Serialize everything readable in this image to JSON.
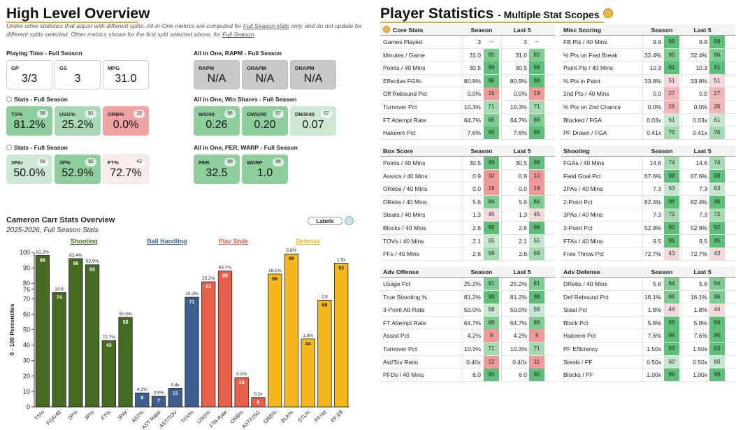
{
  "colors": {
    "shooting": "#456b21",
    "ball_handling": "#3d5f8f",
    "play_style": "#e8604a",
    "defense": "#f4b81c",
    "accent": "#e8a33d"
  },
  "left": {
    "title": "High Level Overview",
    "note_a": "Unlike other statistics that adjust with different splits, All-in-One metrics are computed for ",
    "note_b": "Full Season stats",
    "note_c": " only, and do not update for different splits selected. Other metrics shown for the first split selected above, for ",
    "note_d": "Full Season",
    "note_e": ".",
    "playing_time": {
      "label": "Playing Time - Full Season",
      "cards": [
        {
          "label": "GP",
          "value": "3/3"
        },
        {
          "label": "GS",
          "value": "3"
        },
        {
          "label": "MPG",
          "value": "31.0"
        }
      ]
    },
    "stats1": {
      "label": "Stats - Full Season",
      "cards": [
        {
          "label": "TS%",
          "value": "81.2%",
          "pct": "98"
        },
        {
          "label": "USG%",
          "value": "25.2%",
          "pct": "81"
        },
        {
          "label": "ORB%",
          "value": "0.0%",
          "pct": "19"
        }
      ]
    },
    "stats2": {
      "label": "Stats - Full Season",
      "cards": [
        {
          "label": "3PAr",
          "value": "50.0%",
          "pct": "58"
        },
        {
          "label": "3P%",
          "value": "52.9%",
          "pct": "92"
        },
        {
          "label": "FT%",
          "value": "72.7%",
          "pct": "43"
        }
      ]
    },
    "rapm": {
      "label": "All in One, RAPM - Full Season",
      "cards": [
        {
          "label": "RAPM",
          "value": "N/A"
        },
        {
          "label": "ORAPM",
          "value": "N/A"
        },
        {
          "label": "DRAPM",
          "value": "N/A"
        }
      ]
    },
    "ws": {
      "label": "All in One, Win Shares - Full Season",
      "cards": [
        {
          "label": "WS/40",
          "value": "0.26",
          "pct": "96"
        },
        {
          "label": "OWS/40",
          "value": "0.20",
          "pct": "97"
        },
        {
          "label": "DWS/40",
          "value": "0.07",
          "pct": "67"
        }
      ]
    },
    "per": {
      "label": "All in One, PER, WARP - Full Season",
      "cards": [
        {
          "label": "PER",
          "value": "32.5",
          "pct": "99"
        },
        {
          "label": "WARP",
          "value": "1.0",
          "pct": "96"
        }
      ]
    }
  },
  "chart_data": {
    "type": "bar",
    "title": "Cameron Carr Stats Overview",
    "subtitle": "2025-2026, Full Season Stats",
    "ylabel": "0 - 100 Percentiles",
    "ylim": [
      0,
      100
    ],
    "yticks": [
      "0",
      "10",
      "20",
      "30",
      "40",
      "50",
      "60",
      "70",
      "76",
      "80",
      "90",
      "100"
    ],
    "toggle_label": "Labels",
    "groups": [
      {
        "name": "Shooting",
        "color": "#456b21"
      },
      {
        "name": "Ball Handling",
        "color": "#3d5f8f"
      },
      {
        "name": "Play Style",
        "color": "#e8604a"
      },
      {
        "name": "Defense",
        "color": "#f4b81c"
      }
    ],
    "bars": [
      {
        "cat": "TS%",
        "value": 98,
        "raw": "81.2%",
        "group": 0
      },
      {
        "cat": "FGA/40",
        "value": 74,
        "raw": "14.6",
        "group": 0
      },
      {
        "cat": "2P%",
        "value": 96,
        "raw": "82.4%",
        "group": 0
      },
      {
        "cat": "3P%",
        "value": 92,
        "raw": "52.9%",
        "group": 0
      },
      {
        "cat": "FT%",
        "value": 43,
        "raw": "72.7%",
        "group": 0
      },
      {
        "cat": "3PAr",
        "value": 58,
        "raw": "50.0%",
        "group": 0
      },
      {
        "cat": "AST%",
        "value": 9,
        "raw": "4.2%",
        "group": 1
      },
      {
        "cat": "AST Ratio",
        "value": 7,
        "raw": "3.9%",
        "group": 1
      },
      {
        "cat": "AST/TOV",
        "value": 12,
        "raw": "0.4x",
        "group": 1
      },
      {
        "cat": "TOV%",
        "value": 71,
        "raw": "10.3%",
        "group": 1
      },
      {
        "cat": "USG%",
        "value": 81,
        "raw": "25.2%",
        "group": 2
      },
      {
        "cat": "FTA Rate",
        "value": 88,
        "raw": "64.7%",
        "group": 2
      },
      {
        "cat": "ORB%",
        "value": 19,
        "raw": "0.0%",
        "group": 2
      },
      {
        "cat": "AST/USG",
        "value": 6,
        "raw": "0.2x",
        "group": 2
      },
      {
        "cat": "DRB%",
        "value": 86,
        "raw": "16.1%",
        "group": 3
      },
      {
        "cat": "BLK%",
        "value": 99,
        "raw": "5.8%",
        "group": 3
      },
      {
        "cat": "STL%",
        "value": 44,
        "raw": "1.8%",
        "group": 3
      },
      {
        "cat": "PF/40",
        "value": 69,
        "raw": "2.6",
        "group": 3
      },
      {
        "cat": "PF Eff",
        "value": 93,
        "raw": "1.5x",
        "group": 3
      }
    ]
  },
  "right": {
    "title": "Player Statistics",
    "subtitle": "- Multiple Stat Scopes",
    "tables": [
      {
        "name": "Core Stats",
        "icon": true,
        "h1": "Season",
        "h2": "Last 5",
        "rows": [
          [
            "Games Played",
            "3",
            "--",
            "3",
            "--"
          ],
          [
            "Minutes / Game",
            "31.0",
            "85",
            "31.0",
            "85"
          ],
          [
            "Points / 40 Mins",
            "30.5",
            "99",
            "30.5",
            "99"
          ],
          [
            "Effective FG%",
            "80.9%",
            "98",
            "80.9%",
            "98"
          ],
          [
            "Off Rebound Pct",
            "0.0%",
            "19",
            "0.0%",
            "19"
          ],
          [
            "Turnover Pct",
            "10.3%",
            "71",
            "10.3%",
            "71"
          ],
          [
            "FT Attempt Rate",
            "64.7%",
            "88",
            "64.7%",
            "88"
          ],
          [
            "Hakeem Pct",
            "7.6%",
            "96",
            "7.6%",
            "96"
          ]
        ]
      },
      {
        "name": "Misc Scoring",
        "h1": "Season",
        "h2": "Last 5",
        "rows": [
          [
            "FB Pts / 40 Mins",
            "9.9",
            "99",
            "9.9",
            "99"
          ],
          [
            "% Pts on Fast Break",
            "32.4%",
            "86",
            "32.4%",
            "86"
          ],
          [
            "Paint Pts / 40 Mins",
            "10.3",
            "91",
            "10.3",
            "91"
          ],
          [
            "% Pts in Paint",
            "33.8%",
            "51",
            "33.8%",
            "51"
          ],
          [
            "2nd Pts / 40 Mins",
            "0.0",
            "27",
            "0.0",
            "27"
          ],
          [
            "% Pts on 2nd Chance",
            "0.0%",
            "26",
            "0.0%",
            "26"
          ],
          [
            "Blocked / FGA",
            "0.03x",
            "61",
            "0.03x",
            "61"
          ],
          [
            "PF Drawn / FGA",
            "0.41x",
            "76",
            "0.41x",
            "76"
          ]
        ]
      },
      {
        "name": "Box Score",
        "h1": "Season",
        "h2": "Last 5",
        "rows": [
          [
            "Points / 40 Mins",
            "30.5",
            "99",
            "30.5",
            "99"
          ],
          [
            "Assists / 40 Mins",
            "0.9",
            "10",
            "0.9",
            "10"
          ],
          [
            "ORebs / 40 Mins",
            "0.0",
            "19",
            "0.0",
            "19"
          ],
          [
            "DRebs / 40 Mins",
            "5.6",
            "84",
            "5.6",
            "84"
          ],
          [
            "Steals / 40 Mins",
            "1.3",
            "45",
            "1.3",
            "45"
          ],
          [
            "Blocks / 40 Mins",
            "2.6",
            "99",
            "2.6",
            "99"
          ],
          [
            "TOVs / 40 Mins",
            "2.1",
            "55",
            "2.1",
            "55"
          ],
          [
            "PFs / 40 Mins",
            "2.6",
            "69",
            "2.6",
            "69"
          ]
        ]
      },
      {
        "name": "Shooting",
        "h1": "Season",
        "h2": "Last 5",
        "rows": [
          [
            "FGAs / 40 Mins",
            "14.6",
            "74",
            "14.6",
            "74"
          ],
          [
            "Field Goal Pct",
            "67.6%",
            "98",
            "67.6%",
            "98"
          ],
          [
            "2PAs / 40 Mins",
            "7.3",
            "63",
            "7.3",
            "63"
          ],
          [
            "2-Point Pct",
            "82.4%",
            "96",
            "82.4%",
            "96"
          ],
          [
            "3PAs / 40 Mins",
            "7.3",
            "72",
            "7.3",
            "72"
          ],
          [
            "3-Point Pct",
            "52.9%",
            "92",
            "52.9%",
            "92"
          ],
          [
            "FTAs / 40 Mins",
            "9.5",
            "95",
            "9.5",
            "95"
          ],
          [
            "Free Throw Pct",
            "72.7%",
            "43",
            "72.7%",
            "43"
          ]
        ]
      },
      {
        "name": "Adv Offense",
        "h1": "Season",
        "h2": "Last 5",
        "rows": [
          [
            "Usage Pct",
            "25.2%",
            "81",
            "25.2%",
            "81"
          ],
          [
            "True Shooting %",
            "81.2%",
            "98",
            "81.2%",
            "98"
          ],
          [
            "3-Point Att Rate",
            "50.0%",
            "58",
            "50.0%",
            "58"
          ],
          [
            "FT Attempt Rate",
            "64.7%",
            "88",
            "64.7%",
            "88"
          ],
          [
            "Assist Pct",
            "4.2%",
            "9",
            "4.2%",
            "9"
          ],
          [
            "Turnover Pct",
            "10.3%",
            "71",
            "10.3%",
            "71"
          ],
          [
            "Ast/Tov Ratio",
            "0.40x",
            "12",
            "0.40x",
            "11"
          ],
          [
            "PFDs / 40 Mins",
            "6.0",
            "90",
            "6.0",
            "90"
          ]
        ]
      },
      {
        "name": "Adv Defense",
        "h1": "Season",
        "h2": "Last 5",
        "rows": [
          [
            "DRebs / 40 Mins",
            "5.6",
            "84",
            "5.6",
            "84"
          ],
          [
            "Def Rebound Pct",
            "16.1%",
            "86",
            "16.1%",
            "86"
          ],
          [
            "Steal Pct",
            "1.8%",
            "44",
            "1.8%",
            "44"
          ],
          [
            "Block Pct",
            "5.8%",
            "99",
            "5.8%",
            "99"
          ],
          [
            "Hakeem Pct",
            "7.6%",
            "96",
            "7.6%",
            "96"
          ],
          [
            "PF Efficiency",
            "1.50x",
            "93",
            "1.50x",
            "93"
          ],
          [
            "Steals / PF",
            "0.50x",
            "60",
            "0.50x",
            "60"
          ],
          [
            "Blocks / PF",
            "1.00x",
            "99",
            "1.00x",
            "99"
          ]
        ]
      }
    ]
  }
}
